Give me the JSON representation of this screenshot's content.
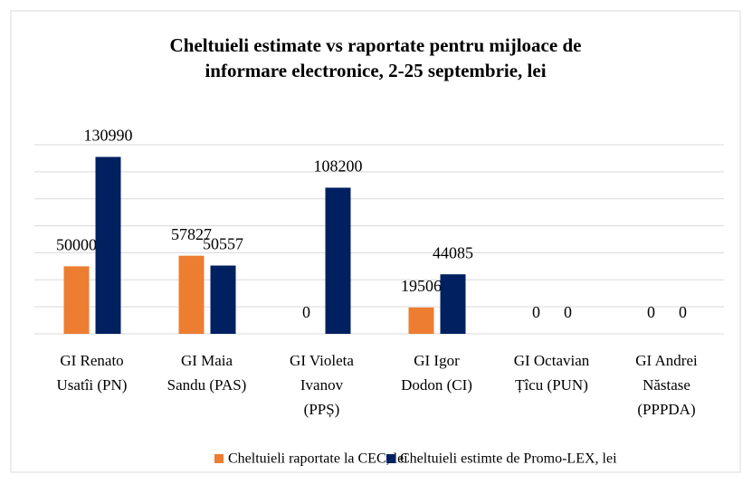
{
  "chart_data": {
    "type": "bar",
    "title": [
      "Cheltuieli estimate vs raportate pentru mijloace de",
      "informare electronice, 2-25 septembrie, lei"
    ],
    "categories": [
      [
        "GI Renato",
        "Usatîi (PN)"
      ],
      [
        "GI Maia",
        "Sandu (PAS)"
      ],
      [
        "GI Violeta",
        "Ivanov",
        "(PPȘ)"
      ],
      [
        "GI Igor",
        "Dodon (CI)"
      ],
      [
        "GI Octavian",
        "Țîcu (PUN)"
      ],
      [
        "GI Andrei",
        "Năstase",
        "(PPPDA)"
      ]
    ],
    "series": [
      {
        "name": "Cheltuieli raportate la CEC, lei",
        "color": "#ed7d31",
        "values": [
          50000,
          57827,
          0,
          19506,
          0,
          0
        ]
      },
      {
        "name": "Cheltuieli estimte de Promo-LEX, lei",
        "color": "#002060",
        "values": [
          130990,
          50557,
          108200,
          44085,
          0,
          0
        ]
      }
    ],
    "ylim": [
      0,
      140000
    ],
    "yticks": [
      0,
      20000,
      40000,
      60000,
      80000,
      100000,
      120000,
      140000
    ],
    "grid": true,
    "legend": "bottom"
  }
}
